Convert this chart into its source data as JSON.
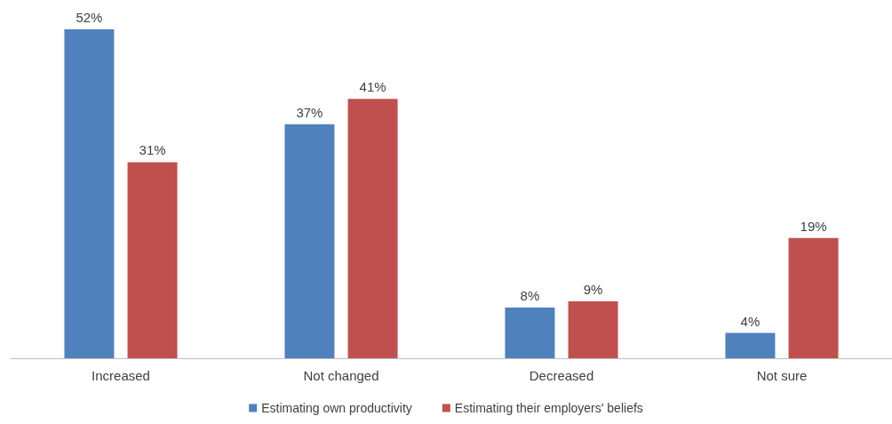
{
  "chart_data": {
    "type": "bar",
    "categories": [
      "Increased",
      "Not changed",
      "Decreased",
      "Not sure"
    ],
    "series": [
      {
        "name": "Estimating own productivity",
        "color": "#4f81bd",
        "values": [
          52,
          37,
          8,
          4
        ],
        "value_labels": [
          "52%",
          "37%",
          "8%",
          "4%"
        ]
      },
      {
        "name": "Estimating their employers' beliefs",
        "color": "#c0504d",
        "values": [
          31,
          41,
          9,
          19
        ],
        "value_labels": [
          "31%",
          "41%",
          "9%",
          "19%"
        ]
      }
    ],
    "legend": "bottom",
    "tick_labels": "x"
  }
}
